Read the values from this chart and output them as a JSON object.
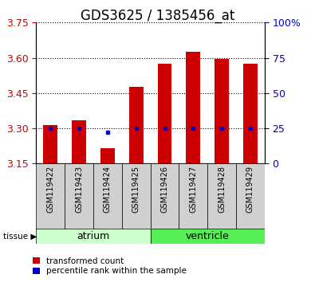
{
  "title": "GDS3625 / 1385456_at",
  "samples": [
    "GSM119422",
    "GSM119423",
    "GSM119424",
    "GSM119425",
    "GSM119426",
    "GSM119427",
    "GSM119428",
    "GSM119429"
  ],
  "transformed_count": [
    3.315,
    3.335,
    3.215,
    3.475,
    3.575,
    3.625,
    3.595,
    3.575
  ],
  "percentile_rank": [
    25,
    25,
    22,
    25,
    25,
    25,
    25,
    25
  ],
  "tissue_groups": [
    {
      "label": "atrium",
      "samples": [
        0,
        1,
        2,
        3
      ],
      "color": "#ccffcc"
    },
    {
      "label": "ventricle",
      "samples": [
        4,
        5,
        6,
        7
      ],
      "color": "#55ee55"
    }
  ],
  "ylim": [
    3.15,
    3.75
  ],
  "yticks": [
    3.15,
    3.3,
    3.45,
    3.6,
    3.75
  ],
  "y2ticks": [
    0,
    25,
    50,
    75,
    100
  ],
  "y2lim": [
    0,
    100
  ],
  "bar_color": "#cc0000",
  "dot_color": "#0000cc",
  "bar_bottom": 3.15,
  "sample_bg_color": "#d0d0d0",
  "title_fontsize": 12,
  "tick_fontsize": 9,
  "sample_fontsize": 7,
  "tissue_label_fontsize": 9,
  "legend_fontsize": 7.5,
  "tick_label_color_left": "#cc0000",
  "tick_label_color_right": "#0000cc"
}
